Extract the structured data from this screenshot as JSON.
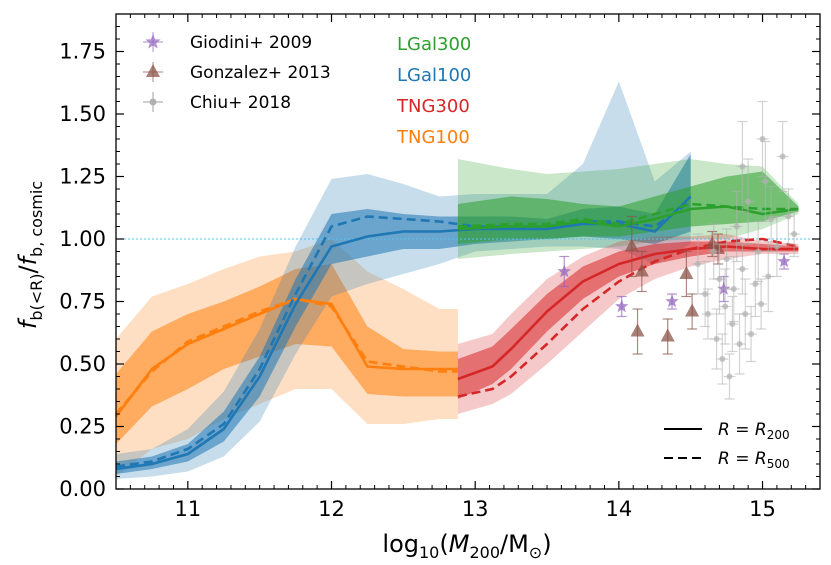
{
  "chart_data": {
    "type": "line",
    "xlabel_parts": [
      "log",
      "10",
      "(",
      "M",
      "200",
      "/M",
      "⊙",
      ")"
    ],
    "ylabel_parts": [
      "f",
      "b(<R)",
      "/",
      "f",
      "b, cosmic"
    ],
    "xlim": [
      10.5,
      15.4
    ],
    "ylim": [
      0.0,
      1.9
    ],
    "x_ticks": [
      {
        "v": 11,
        "label": "11"
      },
      {
        "v": 12,
        "label": "12"
      },
      {
        "v": 13,
        "label": "13"
      },
      {
        "v": 14,
        "label": "14"
      },
      {
        "v": 15,
        "label": "15"
      }
    ],
    "y_ticks": [
      {
        "v": 0.0,
        "label": "0.00"
      },
      {
        "v": 0.25,
        "label": "0.25"
      },
      {
        "v": 0.5,
        "label": "0.50"
      },
      {
        "v": 0.75,
        "label": "0.75"
      },
      {
        "v": 1.0,
        "label": "1.00"
      },
      {
        "v": 1.25,
        "label": "1.25"
      },
      {
        "v": 1.5,
        "label": "1.50"
      },
      {
        "v": 1.75,
        "label": "1.75"
      }
    ],
    "reference_line": {
      "y": 1.0,
      "color": "#5bc0eb"
    },
    "model_labels": [
      {
        "text": "LGal300",
        "color": "#2ca02c"
      },
      {
        "text": "LGal100",
        "color": "#1f77b4"
      },
      {
        "text": "TNG300",
        "color": "#d62728"
      },
      {
        "text": "TNG100",
        "color": "#ff7f0e"
      }
    ],
    "obs_legend": [
      {
        "label": "Giodini+ 2009",
        "marker": "star",
        "color": "#9467bd"
      },
      {
        "label": "Gonzalez+ 2013",
        "marker": "triangle",
        "color": "#8c564b"
      },
      {
        "label": "Chiu+ 2018",
        "marker": "circle",
        "color": "#b0b0b0"
      }
    ],
    "linestyle_legend": [
      {
        "label_parts": [
          "R",
          " = ",
          "R",
          "200"
        ],
        "dash": "solid"
      },
      {
        "label_parts": [
          "R",
          " = ",
          "R",
          "500"
        ],
        "dash": "dashed"
      }
    ],
    "series": [
      {
        "name": "TNG100",
        "color": "#ff7f0e",
        "x": [
          10.5,
          10.75,
          11.0,
          11.25,
          11.5,
          11.75,
          12.0,
          12.25,
          12.5,
          12.75,
          12.88
        ],
        "r200": [
          0.29,
          0.48,
          0.58,
          0.64,
          0.7,
          0.76,
          0.74,
          0.49,
          0.48,
          0.48,
          0.48
        ],
        "r500": [
          0.3,
          0.47,
          0.59,
          0.65,
          0.71,
          0.76,
          0.73,
          0.51,
          0.49,
          0.47,
          0.47
        ],
        "band1_lo": [
          0.18,
          0.33,
          0.4,
          0.48,
          0.53,
          0.58,
          0.57,
          0.38,
          0.37,
          0.37,
          0.37
        ],
        "band1_hi": [
          0.46,
          0.63,
          0.7,
          0.75,
          0.81,
          0.88,
          0.9,
          0.65,
          0.56,
          0.55,
          0.55
        ],
        "band2_lo": [
          0.05,
          0.16,
          0.2,
          0.28,
          0.34,
          0.4,
          0.4,
          0.26,
          0.26,
          0.28,
          0.28
        ],
        "band2_hi": [
          0.6,
          0.77,
          0.82,
          0.88,
          0.93,
          0.95,
          1.0,
          0.87,
          0.8,
          0.72,
          0.72
        ]
      },
      {
        "name": "LGal100",
        "color": "#1f77b4",
        "x": [
          10.5,
          10.75,
          11.0,
          11.25,
          11.5,
          11.75,
          12.0,
          12.25,
          12.5,
          12.75,
          13.0,
          13.25,
          13.5,
          13.75,
          14.0,
          14.25,
          14.5
        ],
        "r200": [
          0.08,
          0.1,
          0.14,
          0.24,
          0.45,
          0.74,
          0.97,
          1.01,
          1.03,
          1.03,
          1.04,
          1.04,
          1.04,
          1.06,
          1.06,
          1.03,
          1.17
        ],
        "r500": [
          0.09,
          0.11,
          0.16,
          0.26,
          0.48,
          0.78,
          1.05,
          1.09,
          1.08,
          1.07,
          1.05,
          1.05,
          1.05,
          1.07,
          1.07,
          1.05,
          1.15
        ],
        "band1_lo": [
          0.06,
          0.08,
          0.11,
          0.19,
          0.37,
          0.65,
          0.9,
          0.93,
          0.96,
          0.96,
          0.98,
          0.99,
          1.0,
          1.01,
          1.0,
          0.98,
          1.03
        ],
        "band1_hi": [
          0.11,
          0.13,
          0.18,
          0.31,
          0.53,
          0.84,
          1.1,
          1.12,
          1.1,
          1.09,
          1.09,
          1.09,
          1.08,
          1.12,
          1.13,
          1.1,
          1.34
        ],
        "band2_lo": [
          0.04,
          0.05,
          0.07,
          0.13,
          0.27,
          0.54,
          0.77,
          0.82,
          0.86,
          0.9,
          0.95,
          0.96,
          0.97,
          0.97,
          0.96,
          0.9,
          0.98
        ],
        "band2_hi": [
          0.14,
          0.16,
          0.24,
          0.39,
          0.64,
          0.97,
          1.24,
          1.26,
          1.22,
          1.17,
          1.18,
          1.18,
          1.18,
          1.3,
          1.63,
          1.23,
          1.35
        ]
      },
      {
        "name": "LGal300",
        "color": "#2ca02c",
        "x": [
          12.88,
          13.25,
          13.5,
          13.75,
          14.0,
          14.25,
          14.5,
          14.75,
          15.0,
          15.25
        ],
        "r200": [
          1.04,
          1.05,
          1.05,
          1.07,
          1.05,
          1.08,
          1.12,
          1.13,
          1.1,
          1.12
        ],
        "r500": [
          1.05,
          1.06,
          1.06,
          1.08,
          1.06,
          1.1,
          1.14,
          1.13,
          1.12,
          1.12
        ],
        "band1_lo": [
          0.98,
          1.0,
          1.0,
          1.01,
          1.01,
          1.03,
          1.05,
          1.06,
          1.07,
          1.11
        ],
        "band1_hi": [
          1.14,
          1.17,
          1.16,
          1.14,
          1.13,
          1.17,
          1.21,
          1.25,
          1.27,
          1.13
        ],
        "band2_lo": [
          0.92,
          0.94,
          0.95,
          0.96,
          0.97,
          0.99,
          1.0,
          1.0,
          1.04,
          1.1
        ],
        "band2_hi": [
          1.32,
          1.28,
          1.26,
          1.27,
          1.28,
          1.3,
          1.32,
          1.3,
          1.29,
          1.14
        ]
      },
      {
        "name": "TNG300",
        "color": "#d62728",
        "x": [
          12.88,
          13.12,
          13.25,
          13.5,
          13.75,
          14.0,
          14.25,
          14.5,
          14.75,
          15.0,
          15.25
        ],
        "r200": [
          0.44,
          0.49,
          0.56,
          0.71,
          0.83,
          0.9,
          0.94,
          0.96,
          0.97,
          0.96,
          0.96
        ],
        "r500": [
          0.37,
          0.4,
          0.45,
          0.58,
          0.72,
          0.83,
          0.91,
          0.96,
          0.99,
          1.0,
          0.97
        ],
        "band1_lo": [
          0.36,
          0.42,
          0.48,
          0.63,
          0.76,
          0.85,
          0.9,
          0.93,
          0.95,
          0.95,
          0.95
        ],
        "band1_hi": [
          0.52,
          0.57,
          0.64,
          0.78,
          0.89,
          0.95,
          0.98,
          0.99,
          0.99,
          0.98,
          0.97
        ],
        "band2_lo": [
          0.3,
          0.34,
          0.38,
          0.5,
          0.63,
          0.76,
          0.84,
          0.89,
          0.92,
          0.94,
          0.94
        ],
        "band2_hi": [
          0.58,
          0.62,
          0.7,
          0.84,
          0.93,
          0.99,
          1.01,
          1.01,
          1.02,
          0.99,
          0.98
        ]
      }
    ],
    "observations": [
      {
        "name": "Giodini+ 2009",
        "marker": "star",
        "color": "#9467bd",
        "points": [
          {
            "x": 13.62,
            "y": 0.87,
            "err": 0.06
          },
          {
            "x": 14.02,
            "y": 0.73,
            "err": 0.04
          },
          {
            "x": 14.37,
            "y": 0.75,
            "err": 0.03
          },
          {
            "x": 14.73,
            "y": 0.8,
            "err": 0.05
          },
          {
            "x": 15.15,
            "y": 0.91,
            "err": 0.03
          }
        ]
      },
      {
        "name": "Gonzalez+ 2013",
        "marker": "triangle",
        "color": "#8c564b",
        "points": [
          {
            "x": 14.09,
            "y": 0.97,
            "err": 0.12
          },
          {
            "x": 14.13,
            "y": 0.63,
            "err": 0.09
          },
          {
            "x": 14.16,
            "y": 0.87,
            "err": 0.08
          },
          {
            "x": 14.34,
            "y": 0.61,
            "err": 0.07
          },
          {
            "x": 14.47,
            "y": 0.86,
            "err": 0.09
          },
          {
            "x": 14.51,
            "y": 0.71,
            "err": 0.07
          },
          {
            "x": 14.65,
            "y": 0.98,
            "err": 0.05
          },
          {
            "x": 14.69,
            "y": 0.96,
            "err": 0.06
          }
        ]
      },
      {
        "name": "Chiu+ 2018",
        "marker": "circle",
        "color": "#b0b0b0",
        "points": [
          {
            "x": 14.55,
            "y": 0.9,
            "err": 0.12
          },
          {
            "x": 14.6,
            "y": 0.78,
            "err": 0.13
          },
          {
            "x": 14.62,
            "y": 0.7,
            "err": 0.1
          },
          {
            "x": 14.66,
            "y": 0.95,
            "err": 0.11
          },
          {
            "x": 14.68,
            "y": 0.6,
            "err": 0.12
          },
          {
            "x": 14.7,
            "y": 0.84,
            "err": 0.14
          },
          {
            "x": 14.72,
            "y": 0.52,
            "err": 0.1
          },
          {
            "x": 14.74,
            "y": 0.73,
            "err": 0.15
          },
          {
            "x": 14.75,
            "y": 0.92,
            "err": 0.12
          },
          {
            "x": 14.77,
            "y": 0.45,
            "err": 0.09
          },
          {
            "x": 14.79,
            "y": 0.66,
            "err": 0.11
          },
          {
            "x": 14.8,
            "y": 0.8,
            "err": 0.13
          },
          {
            "x": 14.82,
            "y": 1.05,
            "err": 0.14
          },
          {
            "x": 14.84,
            "y": 0.58,
            "err": 0.12
          },
          {
            "x": 14.86,
            "y": 0.88,
            "err": 0.1
          },
          {
            "x": 14.88,
            "y": 0.7,
            "err": 0.14
          },
          {
            "x": 14.9,
            "y": 1.15,
            "err": 0.17
          },
          {
            "x": 14.92,
            "y": 0.62,
            "err": 0.11
          },
          {
            "x": 14.95,
            "y": 0.82,
            "err": 0.13
          },
          {
            "x": 14.97,
            "y": 0.95,
            "err": 0.12
          },
          {
            "x": 14.99,
            "y": 0.74,
            "err": 0.1
          },
          {
            "x": 15.02,
            "y": 1.23,
            "err": 0.16
          },
          {
            "x": 15.04,
            "y": 0.85,
            "err": 0.14
          },
          {
            "x": 15.06,
            "y": 1.08,
            "err": 0.13
          },
          {
            "x": 15.1,
            "y": 0.97,
            "err": 0.12
          },
          {
            "x": 15.14,
            "y": 1.33,
            "err": 0.14
          },
          {
            "x": 15.18,
            "y": 1.09,
            "err": 0.11
          },
          {
            "x": 15.22,
            "y": 1.02,
            "err": 0.09
          },
          {
            "x": 15.0,
            "y": 1.4,
            "err": 0.15
          },
          {
            "x": 14.86,
            "y": 1.29,
            "err": 0.18
          }
        ]
      }
    ]
  }
}
